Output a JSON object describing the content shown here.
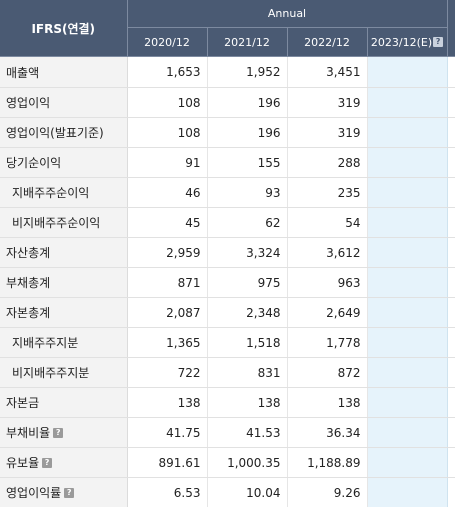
{
  "header": {
    "corner": "IFRS(연결)",
    "group": "Annual",
    "periods": [
      "2020/12",
      "2021/12",
      "2022/12",
      "2023/12(E)"
    ],
    "help_glyph": "?"
  },
  "rows": [
    {
      "label": "매출액",
      "values": [
        "1,653",
        "1,952",
        "3,451"
      ],
      "help": false
    },
    {
      "label": "영업이익",
      "values": [
        "108",
        "196",
        "319"
      ],
      "help": false
    },
    {
      "label": "영업이익(발표기준)",
      "values": [
        "108",
        "196",
        "319"
      ],
      "help": false
    },
    {
      "label": "당기순이익",
      "values": [
        "91",
        "155",
        "288"
      ],
      "help": false
    },
    {
      "label": "지배주주순이익",
      "values": [
        "46",
        "93",
        "235"
      ],
      "help": false
    },
    {
      "label": "비지배주주순이익",
      "values": [
        "45",
        "62",
        "54"
      ],
      "help": false
    },
    {
      "label": "자산총계",
      "values": [
        "2,959",
        "3,324",
        "3,612"
      ],
      "help": false
    },
    {
      "label": "부채총계",
      "values": [
        "871",
        "975",
        "963"
      ],
      "help": false
    },
    {
      "label": "자본총계",
      "values": [
        "2,087",
        "2,348",
        "2,649"
      ],
      "help": false
    },
    {
      "label": "지배주주지분",
      "values": [
        "1,365",
        "1,518",
        "1,778"
      ],
      "help": false
    },
    {
      "label": "비지배주주지분",
      "values": [
        "722",
        "831",
        "872"
      ],
      "help": false
    },
    {
      "label": "자본금",
      "values": [
        "138",
        "138",
        "138"
      ],
      "help": false
    },
    {
      "label": "부채비율",
      "values": [
        "41.75",
        "41.53",
        "36.34"
      ],
      "help": true
    },
    {
      "label": "유보율",
      "values": [
        "891.61",
        "1,000.35",
        "1,188.89"
      ],
      "help": true
    },
    {
      "label": "영업이익률",
      "values": [
        "6.53",
        "10.04",
        "9.26"
      ],
      "help": true
    }
  ],
  "colors": {
    "header_bg": "#4a5a73",
    "label_bg": "#f3f3f3",
    "estimate_bg": "#e6f3fb"
  }
}
